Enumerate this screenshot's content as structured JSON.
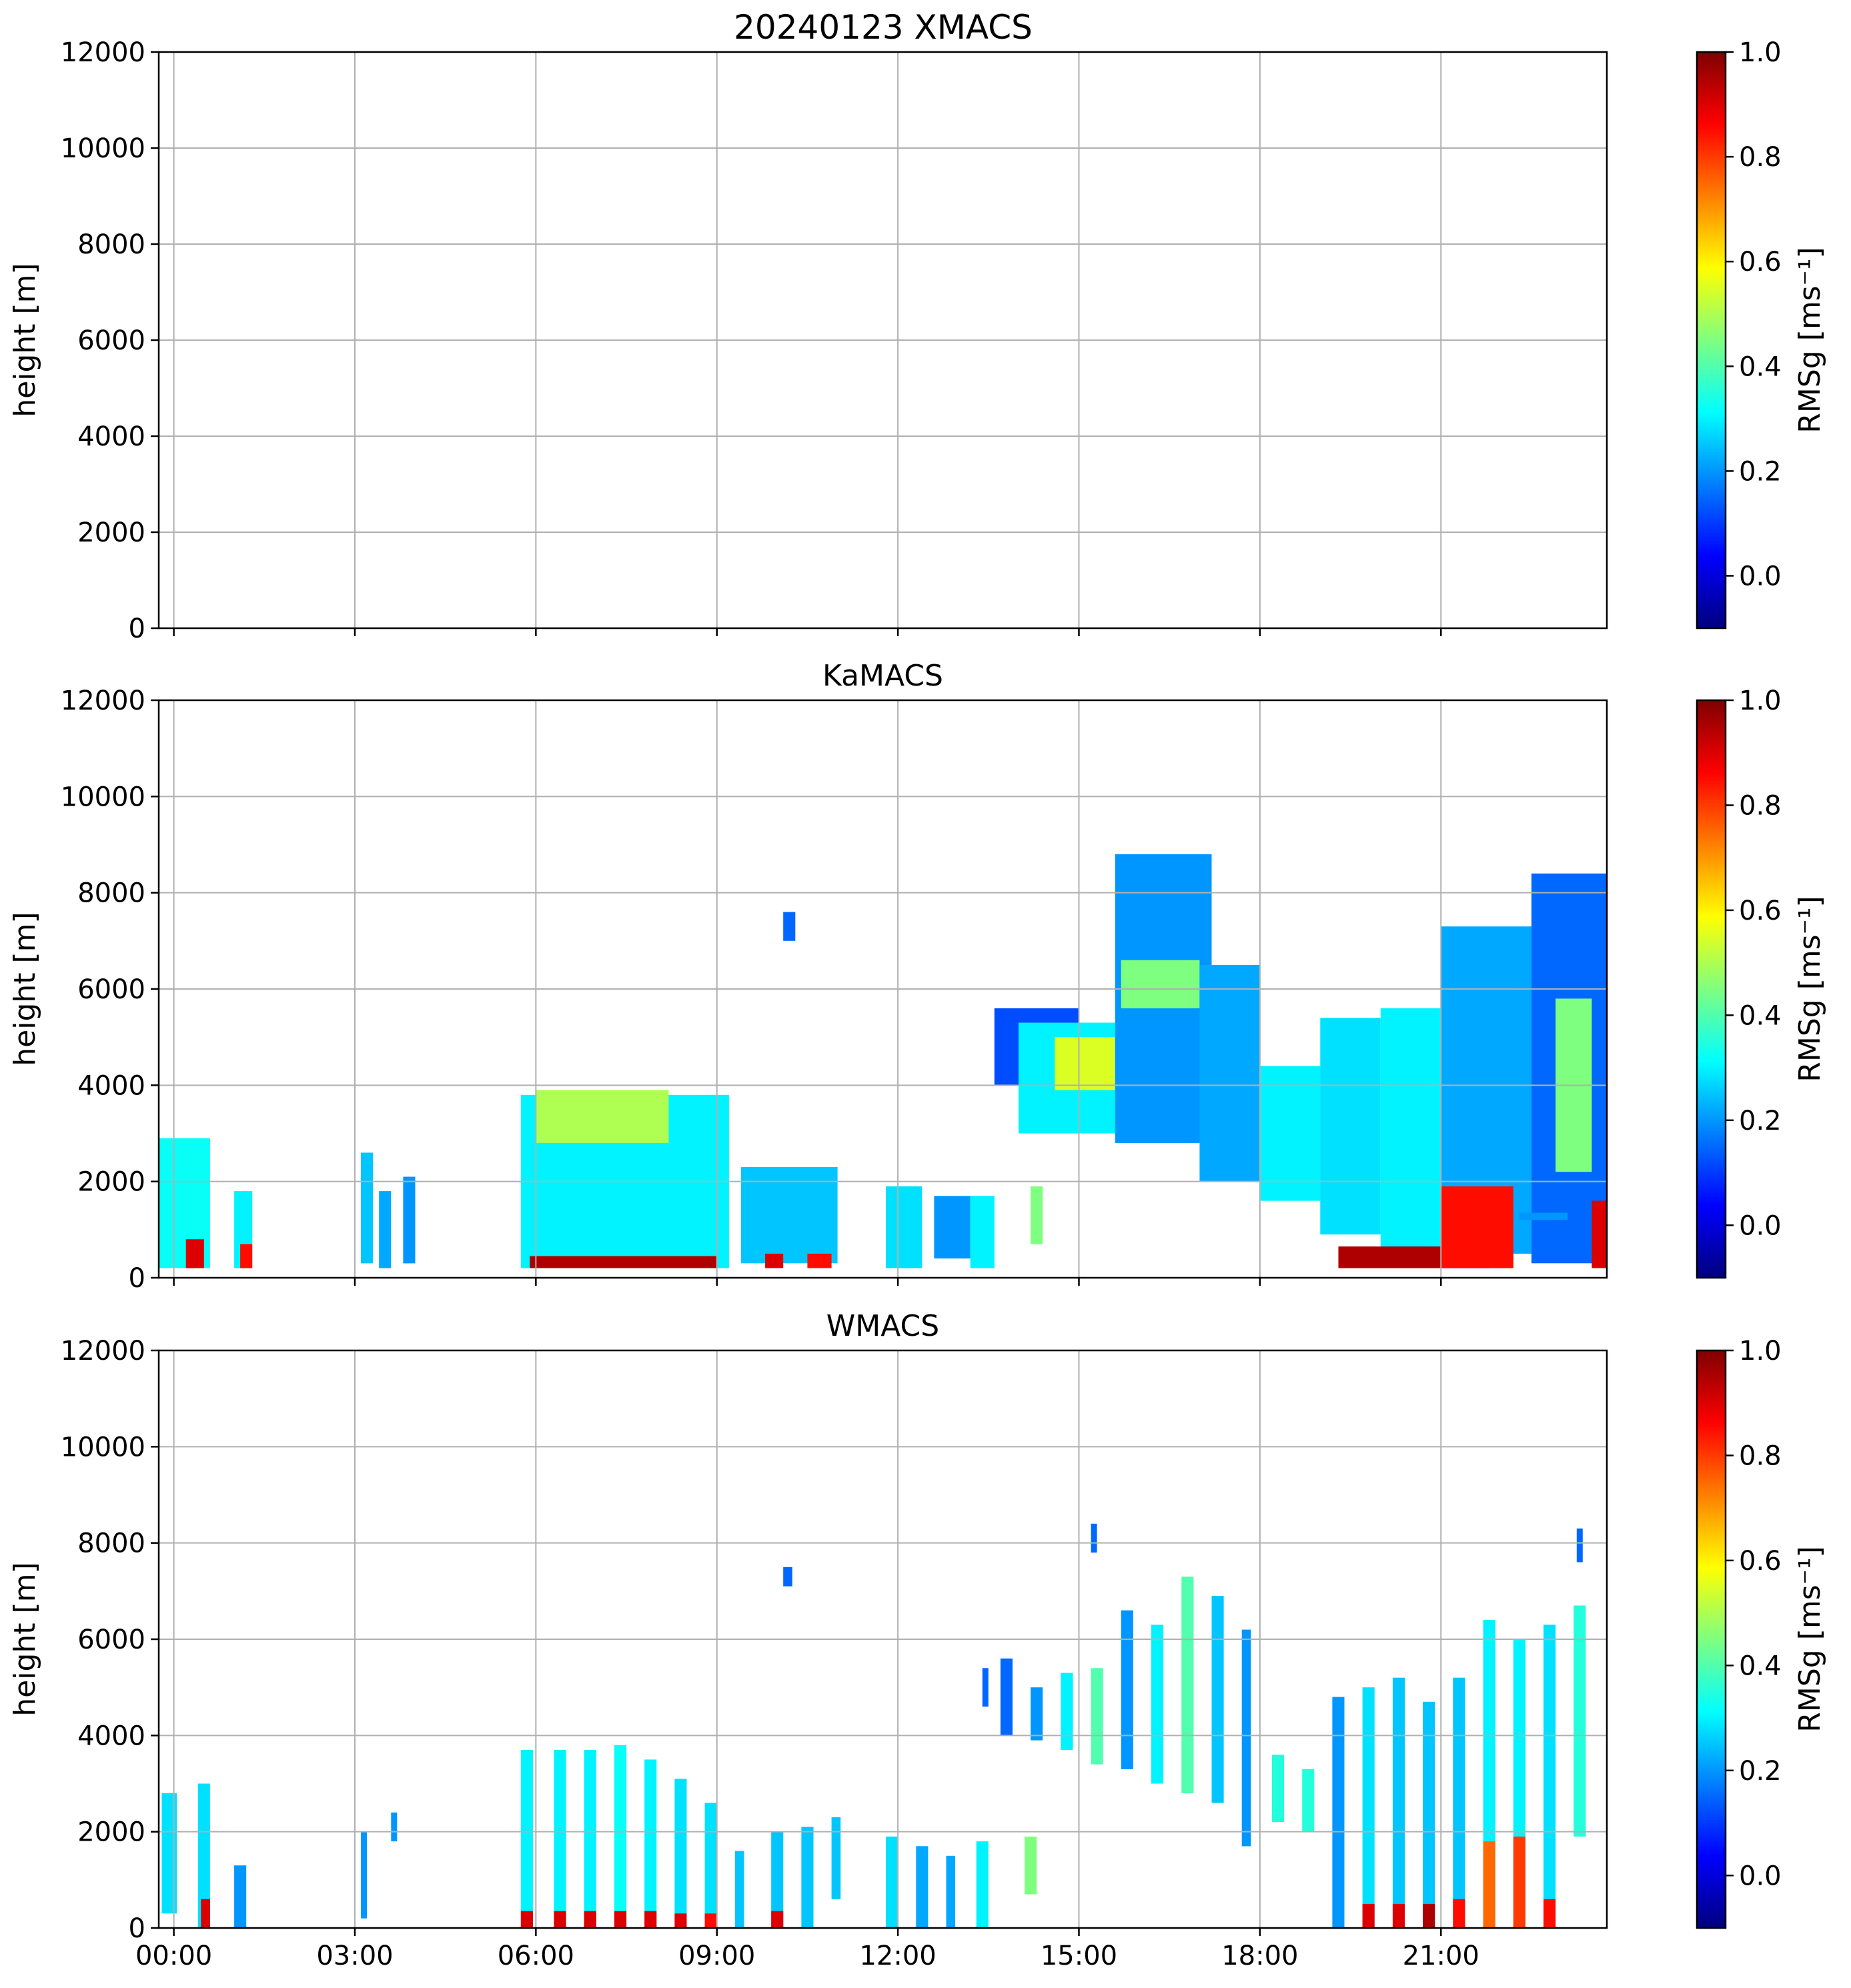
{
  "figure_title": "20240123 XMACS",
  "colormap": {
    "name": "jet",
    "stops": [
      "#00007f",
      "#0000ff",
      "#007fff",
      "#00ffff",
      "#7fff7f",
      "#ffff00",
      "#ff7f00",
      "#ff0000",
      "#7f0000"
    ]
  },
  "chart_data": [
    {
      "type": "heatmap",
      "title": "",
      "xlabel": "",
      "ylabel": "height [m]",
      "xlim": [
        -0.25,
        23.75
      ],
      "ylim": [
        0,
        12000
      ],
      "x_ticks": [
        0,
        3,
        6,
        9,
        12,
        15,
        18,
        21
      ],
      "x_tick_labels": [],
      "y_ticks": [
        0,
        2000,
        4000,
        6000,
        8000,
        10000,
        12000
      ],
      "y_tick_labels": [
        "0",
        "2000",
        "4000",
        "6000",
        "8000",
        "10000",
        "12000"
      ],
      "grid": true,
      "colorbar": {
        "label": "RMSg [ms⁻¹]",
        "range": [
          -0.1,
          1.0
        ],
        "ticks": [
          0.0,
          0.2,
          0.4,
          0.6,
          0.8,
          1.0
        ],
        "tick_labels": [
          "0.0",
          "0.2",
          "0.4",
          "0.6",
          "0.8",
          "1.0"
        ]
      },
      "echoes": []
    },
    {
      "type": "heatmap",
      "title": "KaMACS",
      "xlabel": "",
      "ylabel": "height [m]",
      "xlim": [
        -0.25,
        23.75
      ],
      "ylim": [
        0,
        12000
      ],
      "x_ticks": [
        0,
        3,
        6,
        9,
        12,
        15,
        18,
        21
      ],
      "x_tick_labels": [],
      "y_ticks": [
        0,
        2000,
        4000,
        6000,
        8000,
        10000,
        12000
      ],
      "y_tick_labels": [
        "0",
        "2000",
        "4000",
        "6000",
        "8000",
        "10000",
        "12000"
      ],
      "grid": true,
      "colorbar": {
        "label": "RMSg [ms⁻¹]",
        "range": [
          -0.1,
          1.0
        ],
        "ticks": [
          0.0,
          0.2,
          0.4,
          0.6,
          0.8,
          1.0
        ],
        "tick_labels": [
          "0.0",
          "0.2",
          "0.4",
          "0.6",
          "0.8",
          "1.0"
        ]
      },
      "echoes": [
        {
          "t0": -0.25,
          "t1": 0.6,
          "h0": 200,
          "h1": 2900,
          "v": 0.32
        },
        {
          "t0": 0.2,
          "t1": 0.5,
          "h0": 200,
          "h1": 800,
          "v": 0.9
        },
        {
          "t0": 1.0,
          "t1": 1.3,
          "h0": 200,
          "h1": 1800,
          "v": 0.3
        },
        {
          "t0": 1.1,
          "t1": 1.3,
          "h0": 200,
          "h1": 700,
          "v": 0.85
        },
        {
          "t0": 3.1,
          "t1": 3.3,
          "h0": 300,
          "h1": 2600,
          "v": 0.25
        },
        {
          "t0": 3.4,
          "t1": 3.6,
          "h0": 200,
          "h1": 1800,
          "v": 0.22
        },
        {
          "t0": 3.8,
          "t1": 4.0,
          "h0": 300,
          "h1": 2100,
          "v": 0.2
        },
        {
          "t0": 5.75,
          "t1": 9.2,
          "h0": 200,
          "h1": 3800,
          "v": 0.3
        },
        {
          "t0": 6.0,
          "t1": 8.2,
          "h0": 2800,
          "h1": 3900,
          "v": 0.5
        },
        {
          "t0": 5.9,
          "t1": 9.0,
          "h0": 200,
          "h1": 450,
          "v": 0.95
        },
        {
          "t0": 9.4,
          "t1": 11.0,
          "h0": 300,
          "h1": 2300,
          "v": 0.25
        },
        {
          "t0": 9.8,
          "t1": 10.1,
          "h0": 200,
          "h1": 500,
          "v": 0.9
        },
        {
          "t0": 10.5,
          "t1": 10.9,
          "h0": 200,
          "h1": 500,
          "v": 0.85
        },
        {
          "t0": 11.8,
          "t1": 12.4,
          "h0": 200,
          "h1": 1900,
          "v": 0.28
        },
        {
          "t0": 12.6,
          "t1": 13.2,
          "h0": 400,
          "h1": 1700,
          "v": 0.2
        },
        {
          "t0": 13.2,
          "t1": 13.6,
          "h0": 200,
          "h1": 1700,
          "v": 0.3
        },
        {
          "t0": 14.2,
          "t1": 14.4,
          "h0": 700,
          "h1": 1900,
          "v": 0.45
        },
        {
          "t0": 10.1,
          "t1": 10.3,
          "h0": 7000,
          "h1": 7600,
          "v": 0.15
        },
        {
          "t0": 13.6,
          "t1": 15.0,
          "h0": 4000,
          "h1": 5600,
          "v": 0.12
        },
        {
          "t0": 14.0,
          "t1": 16.2,
          "h0": 3000,
          "h1": 5300,
          "v": 0.3
        },
        {
          "t0": 14.6,
          "t1": 15.6,
          "h0": 3900,
          "h1": 5000,
          "v": 0.55
        },
        {
          "t0": 15.6,
          "t1": 17.2,
          "h0": 2800,
          "h1": 8800,
          "v": 0.2
        },
        {
          "t0": 15.7,
          "t1": 17.0,
          "h0": 5600,
          "h1": 6600,
          "v": 0.45
        },
        {
          "t0": 17.0,
          "t1": 18.0,
          "h0": 2000,
          "h1": 6500,
          "v": 0.22
        },
        {
          "t0": 18.0,
          "t1": 19.0,
          "h0": 1600,
          "h1": 4400,
          "v": 0.3
        },
        {
          "t0": 19.0,
          "t1": 20.0,
          "h0": 900,
          "h1": 5400,
          "v": 0.28
        },
        {
          "t0": 20.0,
          "t1": 21.0,
          "h0": 500,
          "h1": 5600,
          "v": 0.3
        },
        {
          "t0": 21.0,
          "t1": 22.5,
          "h0": 500,
          "h1": 7300,
          "v": 0.22
        },
        {
          "t0": 22.5,
          "t1": 23.75,
          "h0": 300,
          "h1": 8400,
          "v": 0.15
        },
        {
          "t0": 22.9,
          "t1": 23.5,
          "h0": 2200,
          "h1": 5800,
          "v": 0.45
        },
        {
          "t0": 19.3,
          "t1": 21.8,
          "h0": 200,
          "h1": 650,
          "v": 0.95
        },
        {
          "t0": 21.0,
          "t1": 22.2,
          "h0": 200,
          "h1": 1900,
          "v": 0.85
        },
        {
          "t0": 22.3,
          "t1": 23.1,
          "h0": 1200,
          "h1": 1350,
          "v": 0.2
        },
        {
          "t0": 23.5,
          "t1": 23.75,
          "h0": 200,
          "h1": 1600,
          "v": 0.9
        }
      ]
    },
    {
      "type": "heatmap",
      "title": "WMACS",
      "xlabel": "",
      "ylabel": "height [m]",
      "xlim": [
        -0.25,
        23.75
      ],
      "ylim": [
        0,
        12000
      ],
      "x_ticks": [
        0,
        3,
        6,
        9,
        12,
        15,
        18,
        21
      ],
      "x_tick_labels": [
        "00:00",
        "03:00",
        "06:00",
        "09:00",
        "12:00",
        "15:00",
        "18:00",
        "21:00"
      ],
      "y_ticks": [
        0,
        2000,
        4000,
        6000,
        8000,
        10000,
        12000
      ],
      "y_tick_labels": [
        "0",
        "2000",
        "4000",
        "6000",
        "8000",
        "10000",
        "12000"
      ],
      "grid": true,
      "colorbar": {
        "label": "RMSg [ms⁻¹]",
        "range": [
          -0.1,
          1.0
        ],
        "ticks": [
          0.0,
          0.2,
          0.4,
          0.6,
          0.8,
          1.0
        ],
        "tick_labels": [
          "0.0",
          "0.2",
          "0.4",
          "0.6",
          "0.8",
          "1.0"
        ]
      },
      "echoes": [
        {
          "t0": -0.2,
          "t1": 0.05,
          "h0": 300,
          "h1": 2800,
          "v": 0.28
        },
        {
          "t0": 0.4,
          "t1": 0.6,
          "h0": 0,
          "h1": 3000,
          "v": 0.28
        },
        {
          "t0": 0.45,
          "t1": 0.6,
          "h0": 0,
          "h1": 600,
          "v": 0.9
        },
        {
          "t0": 1.0,
          "t1": 1.2,
          "h0": 0,
          "h1": 1300,
          "v": 0.2
        },
        {
          "t0": 3.1,
          "t1": 3.2,
          "h0": 200,
          "h1": 2000,
          "v": 0.2
        },
        {
          "t0": 3.6,
          "t1": 3.7,
          "h0": 1800,
          "h1": 2400,
          "v": 0.2
        },
        {
          "t0": 5.75,
          "t1": 5.95,
          "h0": 0,
          "h1": 3700,
          "v": 0.3
        },
        {
          "t0": 6.3,
          "t1": 6.5,
          "h0": 0,
          "h1": 3700,
          "v": 0.3
        },
        {
          "t0": 6.8,
          "t1": 7.0,
          "h0": 0,
          "h1": 3700,
          "v": 0.3
        },
        {
          "t0": 7.3,
          "t1": 7.5,
          "h0": 0,
          "h1": 3800,
          "v": 0.32
        },
        {
          "t0": 7.8,
          "t1": 8.0,
          "h0": 0,
          "h1": 3500,
          "v": 0.3
        },
        {
          "t0": 8.3,
          "t1": 8.5,
          "h0": 0,
          "h1": 3100,
          "v": 0.28
        },
        {
          "t0": 8.8,
          "t1": 9.0,
          "h0": 0,
          "h1": 2600,
          "v": 0.28
        },
        {
          "t0": 9.3,
          "t1": 9.45,
          "h0": 0,
          "h1": 1600,
          "v": 0.25
        },
        {
          "t0": 9.9,
          "t1": 10.1,
          "h0": 0,
          "h1": 2000,
          "v": 0.25
        },
        {
          "t0": 10.4,
          "t1": 10.6,
          "h0": 0,
          "h1": 2100,
          "v": 0.25
        },
        {
          "t0": 10.9,
          "t1": 11.05,
          "h0": 600,
          "h1": 2300,
          "v": 0.25
        },
        {
          "t0": 11.8,
          "t1": 12.0,
          "h0": 0,
          "h1": 1900,
          "v": 0.28
        },
        {
          "t0": 12.3,
          "t1": 12.5,
          "h0": 0,
          "h1": 1700,
          "v": 0.22
        },
        {
          "t0": 12.8,
          "t1": 12.95,
          "h0": 0,
          "h1": 1500,
          "v": 0.22
        },
        {
          "t0": 13.3,
          "t1": 13.5,
          "h0": 0,
          "h1": 1800,
          "v": 0.3
        },
        {
          "t0": 14.1,
          "t1": 14.3,
          "h0": 700,
          "h1": 1900,
          "v": 0.45
        },
        {
          "t0": 10.1,
          "t1": 10.25,
          "h0": 7100,
          "h1": 7500,
          "v": 0.15
        },
        {
          "t0": 13.4,
          "t1": 13.5,
          "h0": 4600,
          "h1": 5400,
          "v": 0.15
        },
        {
          "t0": 13.7,
          "t1": 13.9,
          "h0": 4000,
          "h1": 5600,
          "v": 0.15
        },
        {
          "t0": 14.2,
          "t1": 14.4,
          "h0": 3900,
          "h1": 5000,
          "v": 0.2
        },
        {
          "t0": 14.7,
          "t1": 14.9,
          "h0": 3700,
          "h1": 5300,
          "v": 0.3
        },
        {
          "t0": 15.2,
          "t1": 15.4,
          "h0": 3400,
          "h1": 5400,
          "v": 0.4
        },
        {
          "t0": 15.7,
          "t1": 15.9,
          "h0": 3300,
          "h1": 6600,
          "v": 0.2
        },
        {
          "t0": 16.2,
          "t1": 16.4,
          "h0": 3000,
          "h1": 6300,
          "v": 0.3
        },
        {
          "t0": 16.7,
          "t1": 16.9,
          "h0": 2800,
          "h1": 7300,
          "v": 0.4
        },
        {
          "t0": 17.2,
          "t1": 17.4,
          "h0": 2600,
          "h1": 6900,
          "v": 0.25
        },
        {
          "t0": 17.7,
          "t1": 17.85,
          "h0": 1700,
          "h1": 6200,
          "v": 0.2
        },
        {
          "t0": 18.2,
          "t1": 18.4,
          "h0": 2200,
          "h1": 3600,
          "v": 0.35
        },
        {
          "t0": 18.7,
          "t1": 18.9,
          "h0": 2000,
          "h1": 3300,
          "v": 0.35
        },
        {
          "t0": 19.2,
          "t1": 19.4,
          "h0": 0,
          "h1": 4800,
          "v": 0.2
        },
        {
          "t0": 19.7,
          "t1": 19.9,
          "h0": 0,
          "h1": 5000,
          "v": 0.28
        },
        {
          "t0": 20.2,
          "t1": 20.4,
          "h0": 0,
          "h1": 5200,
          "v": 0.25
        },
        {
          "t0": 20.7,
          "t1": 20.9,
          "h0": 0,
          "h1": 4700,
          "v": 0.25
        },
        {
          "t0": 21.2,
          "t1": 21.4,
          "h0": 0,
          "h1": 5200,
          "v": 0.25
        },
        {
          "t0": 21.7,
          "t1": 21.9,
          "h0": 0,
          "h1": 6400,
          "v": 0.3
        },
        {
          "t0": 22.2,
          "t1": 22.4,
          "h0": 0,
          "h1": 6000,
          "v": 0.3
        },
        {
          "t0": 22.7,
          "t1": 22.9,
          "h0": 0,
          "h1": 6300,
          "v": 0.28
        },
        {
          "t0": 23.2,
          "t1": 23.4,
          "h0": 1900,
          "h1": 6700,
          "v": 0.35
        },
        {
          "t0": 23.25,
          "t1": 23.35,
          "h0": 7600,
          "h1": 8300,
          "v": 0.15
        },
        {
          "t0": 15.2,
          "t1": 15.3,
          "h0": 7800,
          "h1": 8400,
          "v": 0.15
        },
        {
          "t0": 19.7,
          "t1": 19.9,
          "h0": 0,
          "h1": 500,
          "v": 0.9
        },
        {
          "t0": 20.2,
          "t1": 20.4,
          "h0": 0,
          "h1": 500,
          "v": 0.9
        },
        {
          "t0": 20.7,
          "t1": 20.9,
          "h0": 0,
          "h1": 500,
          "v": 0.95
        },
        {
          "t0": 21.2,
          "t1": 21.4,
          "h0": 0,
          "h1": 600,
          "v": 0.85
        },
        {
          "t0": 21.7,
          "t1": 21.9,
          "h0": 0,
          "h1": 1800,
          "v": 0.75
        },
        {
          "t0": 22.2,
          "t1": 22.4,
          "h0": 0,
          "h1": 1900,
          "v": 0.8
        },
        {
          "t0": 22.7,
          "t1": 22.9,
          "h0": 0,
          "h1": 600,
          "v": 0.85
        },
        {
          "t0": 5.75,
          "t1": 5.95,
          "h0": 0,
          "h1": 350,
          "v": 0.9
        },
        {
          "t0": 6.3,
          "t1": 6.5,
          "h0": 0,
          "h1": 350,
          "v": 0.9
        },
        {
          "t0": 6.8,
          "t1": 7.0,
          "h0": 0,
          "h1": 350,
          "v": 0.9
        },
        {
          "t0": 7.3,
          "t1": 7.5,
          "h0": 0,
          "h1": 350,
          "v": 0.9
        },
        {
          "t0": 7.8,
          "t1": 8.0,
          "h0": 0,
          "h1": 350,
          "v": 0.9
        },
        {
          "t0": 8.3,
          "t1": 8.5,
          "h0": 0,
          "h1": 300,
          "v": 0.9
        },
        {
          "t0": 8.8,
          "t1": 9.0,
          "h0": 0,
          "h1": 300,
          "v": 0.85
        },
        {
          "t0": 9.9,
          "t1": 10.1,
          "h0": 0,
          "h1": 350,
          "v": 0.9
        }
      ]
    }
  ]
}
